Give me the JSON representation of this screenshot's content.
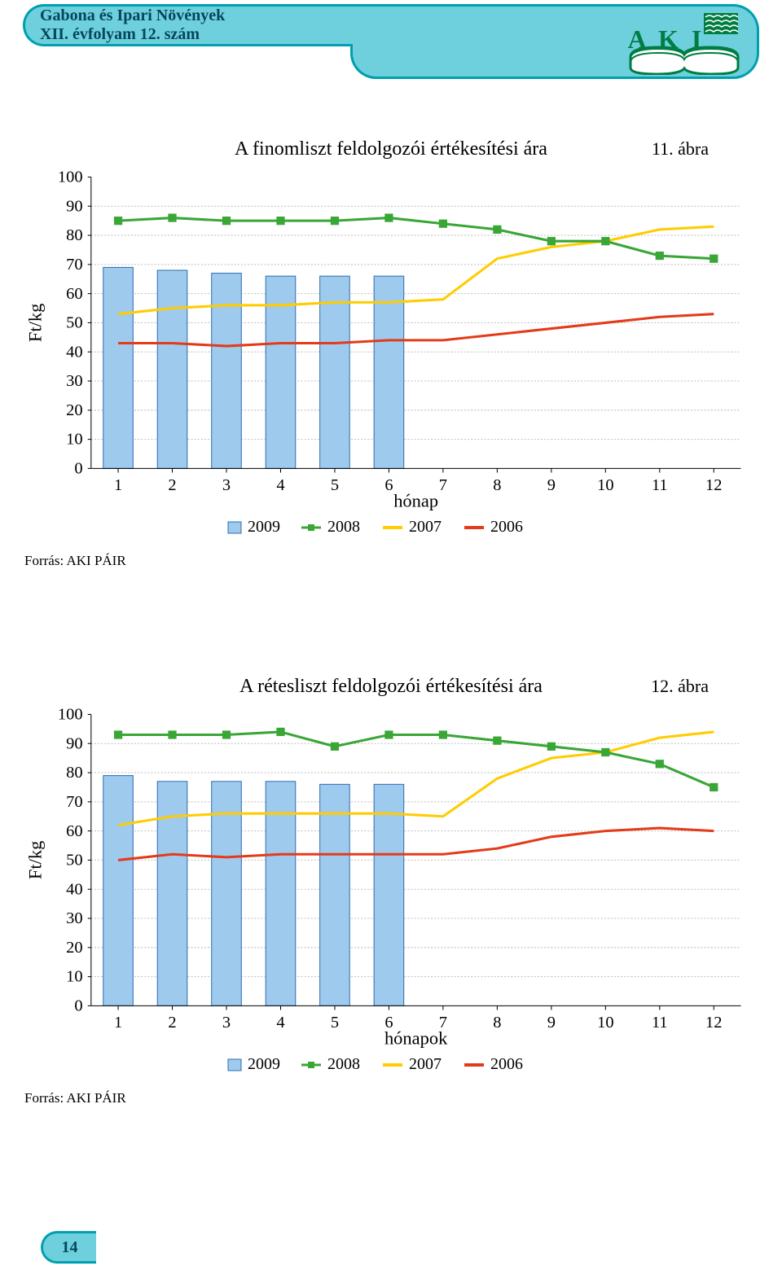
{
  "header": {
    "line1": "Gabona és Ipari Növények",
    "line2": "XII. évfolyam 12. szám",
    "logo_text": "A K I"
  },
  "chart1": {
    "figure_label": "11. ábra",
    "title": "A finomliszt feldolgozói értékesítési ára",
    "ylabel": "Ft/kg",
    "xlabel": "hónap",
    "ymin": 0,
    "ymax": 100,
    "ytick_step": 10,
    "xticks": [
      1,
      2,
      3,
      4,
      5,
      6,
      7,
      8,
      9,
      10,
      11,
      12
    ],
    "bars_2009": [
      69,
      68,
      67,
      66,
      66,
      66,
      null,
      null,
      null,
      null,
      null,
      null
    ],
    "series": {
      "2008": [
        85,
        86,
        85,
        85,
        85,
        86,
        84,
        82,
        78,
        78,
        73,
        72
      ],
      "2007": [
        53,
        55,
        56,
        56,
        57,
        57,
        58,
        72,
        76,
        78,
        82,
        83
      ],
      "2006": [
        43,
        43,
        42,
        43,
        43,
        44,
        44,
        46,
        48,
        50,
        52,
        53
      ]
    },
    "colors": {
      "2009": "#9ecaee",
      "2009_border": "#2f6fb0",
      "2008": "#39a636",
      "2007": "#ffcc00",
      "2006": "#e33b1a"
    },
    "grid_color": "#bfbfbf",
    "bg": "#ffffff",
    "line_width": 3,
    "marker_size": 5,
    "source": "Forrás: AKI PÁIR"
  },
  "chart2": {
    "figure_label": "12. ábra",
    "title": "A rétesliszt feldolgozói értékesítési ára",
    "ylabel": "Ft/kg",
    "xlabel": "hónapok",
    "ymin": 0,
    "ymax": 100,
    "ytick_step": 10,
    "xticks": [
      1,
      2,
      3,
      4,
      5,
      6,
      7,
      8,
      9,
      10,
      11,
      12
    ],
    "bars_2009": [
      79,
      77,
      77,
      77,
      76,
      76,
      null,
      null,
      null,
      null,
      null,
      null
    ],
    "series": {
      "2008": [
        93,
        93,
        93,
        94,
        89,
        93,
        93,
        91,
        89,
        87,
        83,
        75
      ],
      "2007": [
        62,
        65,
        66,
        66,
        66,
        66,
        65,
        78,
        85,
        87,
        92,
        94
      ],
      "2006": [
        50,
        52,
        51,
        52,
        52,
        52,
        52,
        54,
        58,
        60,
        61,
        60
      ]
    },
    "colors": {
      "2009": "#9ecaee",
      "2009_border": "#2f6fb0",
      "2008": "#39a636",
      "2007": "#ffcc00",
      "2006": "#e33b1a"
    },
    "grid_color": "#bfbfbf",
    "bg": "#ffffff",
    "line_width": 3,
    "marker_size": 5,
    "source": "Forrás: AKI PÁIR"
  },
  "legend": {
    "y2009": "2009",
    "y2008": "2008",
    "y2007": "2007",
    "y2006": "2006"
  },
  "page_number": "14"
}
